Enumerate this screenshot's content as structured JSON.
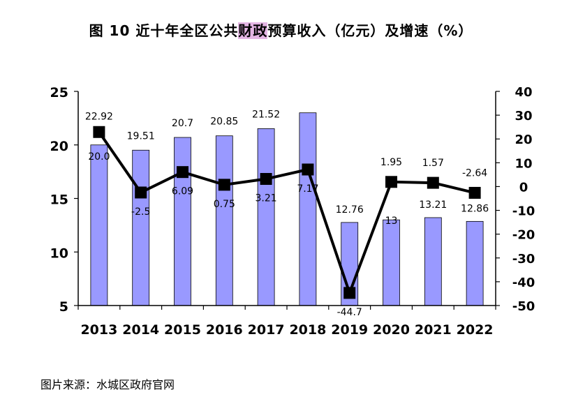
{
  "title": {
    "prefix": "图 10   近十年全区公共",
    "highlight": "财政",
    "suffix": "预算收入（亿元）及增速（%）"
  },
  "source": "图片来源：水城区政府官网",
  "colors": {
    "bar_fill": "#9999ff",
    "bar_stroke": "#000000",
    "line": "#000000",
    "marker": "#000000",
    "highlight": "#e4b5e4"
  },
  "chart_data": {
    "type": "bar",
    "categories": [
      "2013",
      "2014",
      "2015",
      "2016",
      "2017",
      "2018",
      "2019",
      "2020",
      "2021",
      "2022"
    ],
    "series": [
      {
        "type": "bar",
        "axis": "left",
        "values": [
          20.0,
          19.51,
          20.7,
          20.85,
          21.52,
          23.0,
          12.76,
          13,
          13.21,
          12.86
        ],
        "labels": [
          "20.0",
          "19.51",
          "20.7",
          "20.85",
          "21.52",
          "",
          "12.76",
          "13",
          "13.21",
          "12.86"
        ]
      },
      {
        "type": "line",
        "axis": "right",
        "values": [
          22.92,
          -2.5,
          6.09,
          0.75,
          3.21,
          7.17,
          -44.7,
          1.95,
          1.57,
          -2.64
        ],
        "labels": [
          "22.92",
          "-2.5",
          "6.09",
          "0.75",
          "3.21",
          "7.17",
          "-44.7",
          "1.95",
          "1.57",
          "-2.64"
        ]
      }
    ],
    "y_left": {
      "min": 5,
      "max": 25,
      "ticks": [
        5,
        10,
        15,
        20,
        25
      ]
    },
    "y_right": {
      "min": -50,
      "max": 40,
      "ticks": [
        -50,
        -40,
        -30,
        -20,
        -10,
        0,
        10,
        20,
        30,
        40
      ]
    },
    "grid": false,
    "legend": "none"
  }
}
